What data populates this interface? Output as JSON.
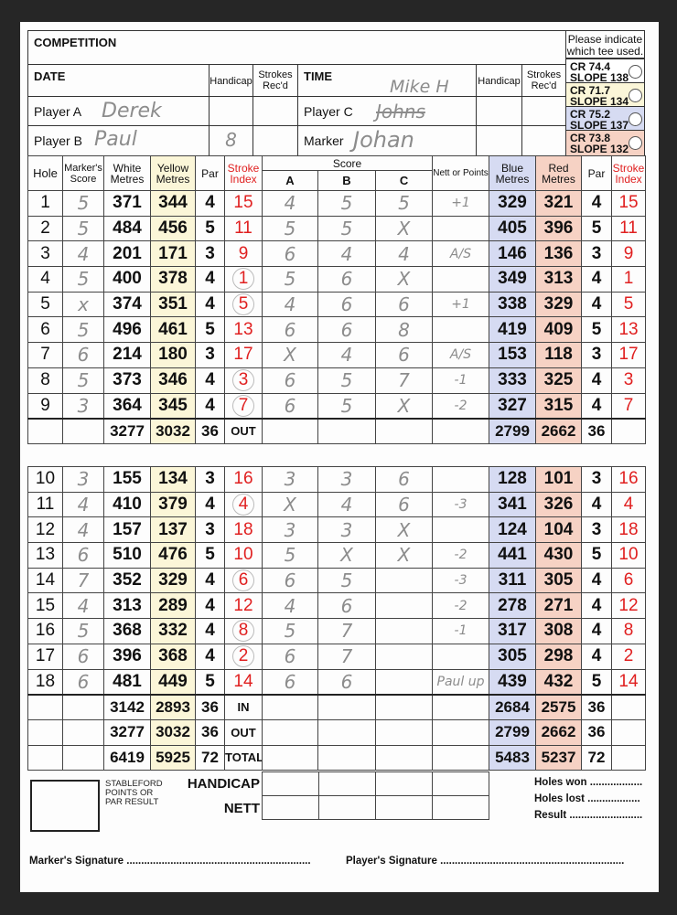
{
  "header": {
    "competition_label": "COMPETITION",
    "tee_note": "Please indicate which tee used.",
    "date_label": "DATE",
    "time_label": "TIME",
    "handicap_label": "Handicap",
    "strokes_label": "Strokes Rec'd",
    "player_a_label": "Player A",
    "player_b_label": "Player B",
    "player_c_label": "Player C",
    "marker_label": "Marker",
    "player_a_name": "Derek",
    "player_b_name": "Paul",
    "player_b_handicap": "8",
    "player_c_name": "Mike H",
    "player_c_struck_name": "Johns",
    "marker_name": "Johan"
  },
  "tees": [
    {
      "cr": "CR 74.4",
      "slope": "SLOPE 138",
      "color": "#ffffff"
    },
    {
      "cr": "CR 71.7",
      "slope": "SLOPE 134",
      "color": "#fbf6d8"
    },
    {
      "cr": "CR 75.2",
      "slope": "SLOPE 137",
      "color": "#d6dbf2"
    },
    {
      "cr": "CR 73.8",
      "slope": "SLOPE 132",
      "color": "#f6d2c4"
    }
  ],
  "columns": {
    "hole": "Hole",
    "marker": "Marker's Score",
    "white": "White Metres",
    "yellow": "Yellow Metres",
    "par": "Par",
    "si": "Stroke Index",
    "score": "Score",
    "a": "A",
    "b": "B",
    "c": "C",
    "nett": "Nett or Points",
    "blue": "Blue Metres",
    "red": "Red Metres"
  },
  "front": [
    {
      "hole": "1",
      "marker": "5",
      "white": "371",
      "yellow": "344",
      "par": "4",
      "si": "15",
      "circled": false,
      "a": "4",
      "b": "5",
      "c": "5",
      "nett": "+1",
      "blue": "329",
      "red": "321"
    },
    {
      "hole": "2",
      "marker": "5",
      "white": "484",
      "yellow": "456",
      "par": "5",
      "si": "11",
      "circled": false,
      "a": "5",
      "b": "5",
      "c": "X",
      "nett": "",
      "blue": "405",
      "red": "396"
    },
    {
      "hole": "3",
      "marker": "4",
      "white": "201",
      "yellow": "171",
      "par": "3",
      "si": "9",
      "circled": false,
      "a": "6",
      "b": "4",
      "c": "4",
      "nett": "A/S",
      "blue": "146",
      "red": "136"
    },
    {
      "hole": "4",
      "marker": "5",
      "white": "400",
      "yellow": "378",
      "par": "4",
      "si": "1",
      "circled": true,
      "a": "5",
      "b": "6",
      "c": "X",
      "nett": "",
      "blue": "349",
      "red": "313"
    },
    {
      "hole": "5",
      "marker": "x",
      "white": "374",
      "yellow": "351",
      "par": "4",
      "si": "5",
      "circled": true,
      "a": "4",
      "b": "6",
      "c": "6",
      "nett": "+1",
      "blue": "338",
      "red": "329"
    },
    {
      "hole": "6",
      "marker": "5",
      "white": "496",
      "yellow": "461",
      "par": "5",
      "si": "13",
      "circled": false,
      "a": "6",
      "b": "6",
      "c": "8",
      "nett": "",
      "blue": "419",
      "red": "409"
    },
    {
      "hole": "7",
      "marker": "6",
      "white": "214",
      "yellow": "180",
      "par": "3",
      "si": "17",
      "circled": false,
      "a": "X",
      "b": "4",
      "c": "6",
      "nett": "A/S",
      "blue": "153",
      "red": "118"
    },
    {
      "hole": "8",
      "marker": "5",
      "white": "373",
      "yellow": "346",
      "par": "4",
      "si": "3",
      "circled": true,
      "a": "6",
      "b": "5",
      "c": "7",
      "nett": "-1",
      "blue": "333",
      "red": "325"
    },
    {
      "hole": "9",
      "marker": "3",
      "white": "364",
      "yellow": "345",
      "par": "4",
      "si": "7",
      "circled": true,
      "a": "6",
      "b": "5",
      "c": "X",
      "nett": "-2",
      "blue": "327",
      "red": "315"
    }
  ],
  "front_total": {
    "white": "3277",
    "yellow": "3032",
    "par": "36",
    "word": "OUT",
    "blue": "2799",
    "red": "2662",
    "par2": "36"
  },
  "back": [
    {
      "hole": "10",
      "marker": "3",
      "white": "155",
      "yellow": "134",
      "par": "3",
      "si": "16",
      "circled": false,
      "a": "3",
      "b": "3",
      "c": "6",
      "nett": "",
      "blue": "128",
      "red": "101"
    },
    {
      "hole": "11",
      "marker": "4",
      "white": "410",
      "yellow": "379",
      "par": "4",
      "si": "4",
      "circled": true,
      "a": "X",
      "b": "4",
      "c": "6",
      "nett": "-3",
      "blue": "341",
      "red": "326"
    },
    {
      "hole": "12",
      "marker": "4",
      "white": "157",
      "yellow": "137",
      "par": "3",
      "si": "18",
      "circled": false,
      "a": "3",
      "b": "3",
      "c": "X",
      "nett": "",
      "blue": "124",
      "red": "104"
    },
    {
      "hole": "13",
      "marker": "6",
      "white": "510",
      "yellow": "476",
      "par": "5",
      "si": "10",
      "circled": false,
      "a": "5",
      "b": "X",
      "c": "X",
      "nett": "-2",
      "blue": "441",
      "red": "430"
    },
    {
      "hole": "14",
      "marker": "7",
      "white": "352",
      "yellow": "329",
      "par": "4",
      "si": "6",
      "circled": true,
      "a": "6",
      "b": "5",
      "c": "",
      "nett": "-3",
      "blue": "311",
      "red": "305"
    },
    {
      "hole": "15",
      "marker": "4",
      "white": "313",
      "yellow": "289",
      "par": "4",
      "si": "12",
      "circled": false,
      "a": "4",
      "b": "6",
      "c": "",
      "nett": "-2",
      "blue": "278",
      "red": "271"
    },
    {
      "hole": "16",
      "marker": "5",
      "white": "368",
      "yellow": "332",
      "par": "4",
      "si": "8",
      "circled": true,
      "a": "5",
      "b": "7",
      "c": "",
      "nett": "-1",
      "blue": "317",
      "red": "308"
    },
    {
      "hole": "17",
      "marker": "6",
      "white": "396",
      "yellow": "368",
      "par": "4",
      "si": "2",
      "circled": true,
      "a": "6",
      "b": "7",
      "c": "",
      "nett": "",
      "blue": "305",
      "red": "298"
    },
    {
      "hole": "18",
      "marker": "6",
      "white": "481",
      "yellow": "449",
      "par": "5",
      "si": "14",
      "circled": false,
      "a": "6",
      "b": "6",
      "c": "",
      "nett": "Paul up",
      "blue": "439",
      "red": "432"
    }
  ],
  "back_totals": [
    {
      "white": "3142",
      "yellow": "2893",
      "par": "36",
      "word": "IN",
      "blue": "2684",
      "red": "2575",
      "par2": "36"
    },
    {
      "white": "3277",
      "yellow": "3032",
      "par": "36",
      "word": "OUT",
      "blue": "2799",
      "red": "2662",
      "par2": "36"
    },
    {
      "white": "6419",
      "yellow": "5925",
      "par": "72",
      "word": "TOTAL",
      "blue": "5483",
      "red": "5237",
      "par2": "72"
    }
  ],
  "footer": {
    "stableford": "STABLEFORD POINTS OR PAR RESULT",
    "handicap": "HANDICAP",
    "nett": "NETT",
    "holes_won": "Holes won ..................",
    "holes_lost": "Holes lost ..................",
    "result": "Result .........................",
    "marker_sig": "Marker's Signature ...............................................................",
    "player_sig": "Player's Signature ..............................................................."
  }
}
